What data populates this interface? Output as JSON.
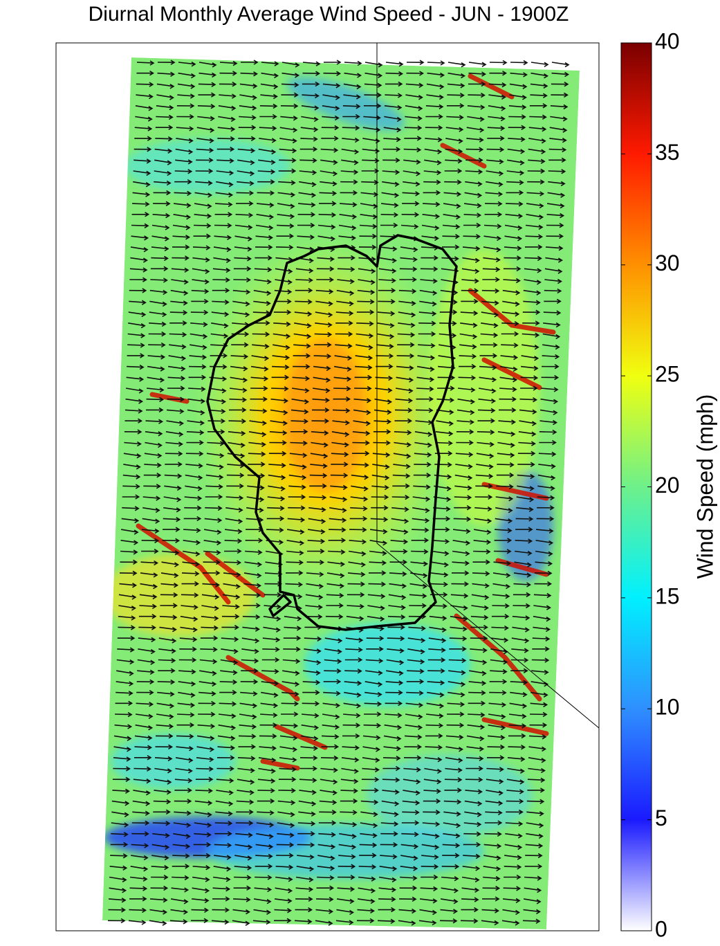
{
  "title": "Diurnal Monthly Average Wind Speed - JUN - 1900Z",
  "colorbar": {
    "label": "Wind Speed (mph)",
    "lim": [
      0,
      40
    ],
    "ticks": [
      0,
      5,
      10,
      15,
      20,
      25,
      30,
      35,
      40
    ],
    "colormap": [
      "#ffffff",
      "#1a1aff",
      "#2f8fff",
      "#00f0ff",
      "#6ef08a",
      "#f0ff10",
      "#ff9000",
      "#ff1a00",
      "#7a0000"
    ]
  }
}
